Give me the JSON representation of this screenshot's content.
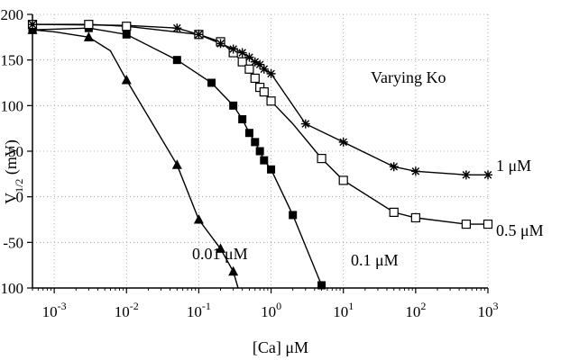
{
  "chart_data": {
    "type": "line",
    "title": "",
    "xlabel": "[Ca] μM",
    "ylabel": "V1/2 (mV)",
    "xscale": "log",
    "xlim": [
      0.0005,
      1000
    ],
    "ylim": [
      -100,
      200
    ],
    "grid": true,
    "legend": "none",
    "x_ticks": [
      {
        "value": 0.001,
        "base": "10",
        "exp": "-3"
      },
      {
        "value": 0.01,
        "base": "10",
        "exp": "-2"
      },
      {
        "value": 0.1,
        "base": "10",
        "exp": "-1"
      },
      {
        "value": 1,
        "base": "10",
        "exp": "0"
      },
      {
        "value": 10,
        "base": "10",
        "exp": "1"
      },
      {
        "value": 100,
        "base": "10",
        "exp": "2"
      },
      {
        "value": 1000,
        "base": "10",
        "exp": "3"
      }
    ],
    "y_ticks": [
      {
        "value": 200,
        "label": "200"
      },
      {
        "value": 150,
        "label": "150"
      },
      {
        "value": 100,
        "label": "100"
      },
      {
        "value": 50,
        "label": "50"
      },
      {
        "value": 0,
        "label": "0"
      },
      {
        "value": -50,
        "label": "-50"
      },
      {
        "value": -100,
        "label": "-100"
      }
    ],
    "series": [
      {
        "label": "0.01 μM",
        "marker": "filled-triangle",
        "x": [
          0.0005,
          0.003,
          0.01,
          0.05,
          0.1,
          0.2,
          0.3
        ],
        "y": [
          183,
          175,
          128,
          35,
          -25,
          -57,
          -82
        ],
        "curve_x": [
          0.0005,
          0.001,
          0.003,
          0.006,
          0.01,
          0.02,
          0.05,
          0.1,
          0.2,
          0.3,
          0.35
        ],
        "curve_y": [
          183,
          181,
          175,
          160,
          128,
          88,
          35,
          -25,
          -57,
          -82,
          -100
        ]
      },
      {
        "label": "0.1 μM",
        "marker": "filled-square",
        "x": [
          0.0005,
          0.003,
          0.01,
          0.05,
          0.15,
          0.3,
          0.4,
          0.5,
          0.6,
          0.7,
          0.8,
          1.0,
          2.0,
          5.0
        ],
        "y": [
          183,
          185,
          178,
          150,
          125,
          100,
          85,
          70,
          60,
          50,
          40,
          30,
          -20,
          -97
        ],
        "curve_x": [
          0.0005,
          0.003,
          0.01,
          0.05,
          0.15,
          0.3,
          0.4,
          0.5,
          0.6,
          0.7,
          0.8,
          1.0,
          2.0,
          5.0
        ],
        "curve_y": [
          183,
          185,
          178,
          150,
          125,
          100,
          85,
          70,
          60,
          50,
          40,
          30,
          -20,
          -97
        ]
      },
      {
        "label": "0.5 μM",
        "marker": "open-square",
        "x": [
          0.0005,
          0.003,
          0.01,
          0.1,
          0.2,
          0.3,
          0.4,
          0.5,
          0.6,
          0.7,
          0.8,
          1.0,
          5.0,
          10,
          50,
          100,
          500,
          1000
        ],
        "y": [
          189,
          189,
          187,
          178,
          170,
          158,
          148,
          140,
          130,
          120,
          115,
          105,
          42,
          18,
          -17,
          -23,
          -30,
          -30
        ],
        "curve_x": [
          0.0005,
          0.003,
          0.01,
          0.1,
          0.2,
          0.3,
          0.4,
          0.5,
          0.6,
          0.7,
          0.8,
          1.0,
          2.0,
          5.0,
          10,
          50,
          100,
          500,
          1000
        ],
        "curve_y": [
          189,
          189,
          187,
          178,
          170,
          158,
          148,
          140,
          130,
          120,
          115,
          105,
          80,
          42,
          18,
          -17,
          -23,
          -30,
          -30
        ]
      },
      {
        "label": "1 μM",
        "marker": "asterisk",
        "x": [
          0.0005,
          0.05,
          0.1,
          0.2,
          0.3,
          0.4,
          0.5,
          0.6,
          0.7,
          0.8,
          1.0,
          3.0,
          10,
          50,
          100,
          500,
          1000
        ],
        "y": [
          189,
          185,
          178,
          168,
          162,
          158,
          153,
          148,
          145,
          140,
          135,
          80,
          60,
          33,
          28,
          24,
          24
        ],
        "curve_x": [
          0.0005,
          0.01,
          0.05,
          0.1,
          0.2,
          0.3,
          0.4,
          0.5,
          0.6,
          0.7,
          0.8,
          1.0,
          3.0,
          10,
          50,
          100,
          500,
          1000
        ],
        "curve_y": [
          189,
          188,
          185,
          178,
          168,
          162,
          158,
          153,
          148,
          145,
          140,
          135,
          80,
          60,
          33,
          28,
          24,
          24
        ]
      }
    ],
    "annotations": {
      "varying_ko": "Varying Ko",
      "s1": "1 μM",
      "s05": "0.5 μM",
      "s01": "0.1 μM",
      "s001": "0.01 μM"
    }
  }
}
